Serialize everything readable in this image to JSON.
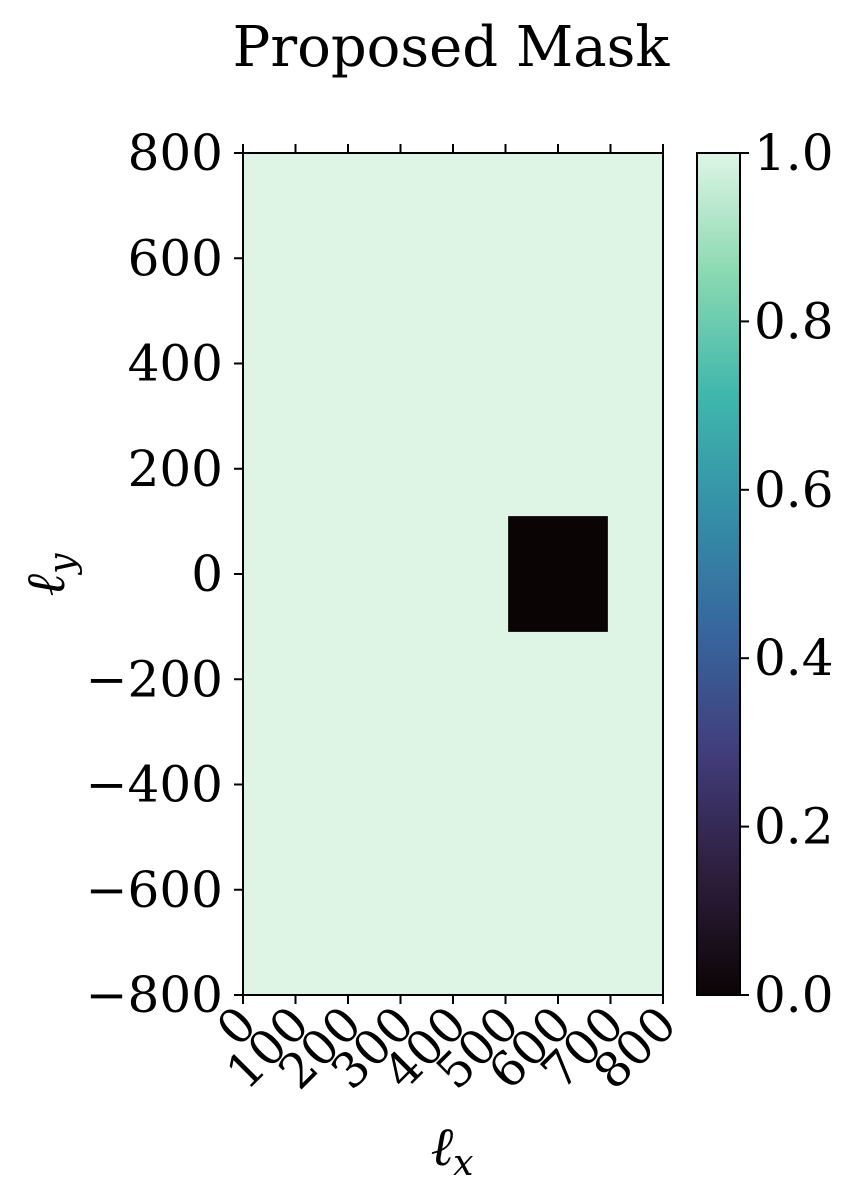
{
  "chart_data": {
    "type": "heatmap",
    "title": "Proposed Mask",
    "xlabel": "ℓ",
    "xlabel_sub": "x",
    "ylabel": "ℓ",
    "ylabel_sub": "y",
    "xlim": [
      0,
      800
    ],
    "ylim": [
      -800,
      800
    ],
    "xticks": [
      0,
      100,
      200,
      300,
      400,
      500,
      600,
      700,
      800
    ],
    "xtick_labels": [
      "0",
      "100",
      "200",
      "300",
      "400",
      "500",
      "600",
      "700",
      "800"
    ],
    "yticks": [
      800,
      600,
      400,
      200,
      0,
      -200,
      -400,
      -600,
      -800
    ],
    "ytick_labels": [
      "800",
      "600",
      "400",
      "200",
      "0",
      "−200",
      "−400",
      "−600",
      "−800"
    ],
    "background_value": 1.0,
    "masked_region": {
      "x": [
        505,
        695
      ],
      "y": [
        -110,
        110
      ],
      "value": 0.0
    },
    "colorbar": {
      "range": [
        0.0,
        1.0
      ],
      "ticks": [
        1.0,
        0.8,
        0.6,
        0.4,
        0.2,
        0.0
      ],
      "tick_labels": [
        "1.0",
        "0.8",
        "0.6",
        "0.4",
        "0.2",
        "0.0"
      ],
      "colormap": "mako",
      "stops": [
        "#0b0405",
        "#2e1e3c",
        "#413d7b",
        "#37659e",
        "#348fa7",
        "#40b7ad",
        "#8ad9b1",
        "#def5e5"
      ]
    },
    "grid": false
  }
}
